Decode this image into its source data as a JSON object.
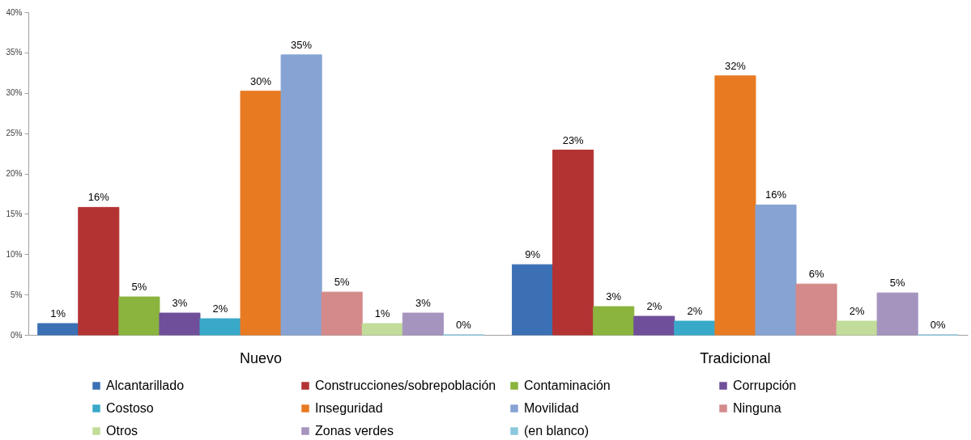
{
  "chart_data": {
    "type": "bar",
    "categories": [
      "Nuevo",
      "Tradicional"
    ],
    "series": [
      {
        "name": "Alcantarillado",
        "color": "#3c70b5",
        "values": [
          1.4,
          8.7
        ],
        "value_labels": [
          "1%",
          "9%"
        ]
      },
      {
        "name": "Construcciones/sobrepoblación",
        "color": "#b33333",
        "values": [
          15.8,
          22.9
        ],
        "value_labels": [
          "16%",
          "23%"
        ]
      },
      {
        "name": "Contaminación",
        "color": "#8ab43e",
        "values": [
          4.7,
          3.5
        ],
        "value_labels": [
          "5%",
          "3%"
        ]
      },
      {
        "name": "Corrupción",
        "color": "#6f4f9a",
        "values": [
          2.7,
          2.3
        ],
        "value_labels": [
          "3%",
          "2%"
        ]
      },
      {
        "name": "Costoso",
        "color": "#39a9c9",
        "values": [
          2.0,
          1.7
        ],
        "value_labels": [
          "2%",
          "2%"
        ]
      },
      {
        "name": "Inseguridad",
        "color": "#e87a22",
        "values": [
          30.2,
          32.1
        ],
        "value_labels": [
          "30%",
          "32%"
        ]
      },
      {
        "name": "Movilidad",
        "color": "#86a3d3",
        "values": [
          34.7,
          16.1
        ],
        "value_labels": [
          "35%",
          "16%"
        ]
      },
      {
        "name": "Ninguna",
        "color": "#d48a8a",
        "values": [
          5.3,
          6.3
        ],
        "value_labels": [
          "5%",
          "6%"
        ]
      },
      {
        "name": "Otros",
        "color": "#c2dc9a",
        "values": [
          1.4,
          1.7
        ],
        "value_labels": [
          "1%",
          "2%"
        ]
      },
      {
        "name": "Zonas verdes",
        "color": "#a494be",
        "values": [
          2.7,
          5.2
        ],
        "value_labels": [
          "3%",
          "5%"
        ]
      },
      {
        "name": "(en blanco)",
        "color": "#8cc8dc",
        "values": [
          0,
          0
        ],
        "value_labels": [
          "0%",
          "0%"
        ]
      }
    ],
    "ylim": [
      0,
      40
    ],
    "yticks": [
      {
        "value": 0,
        "label": "0%"
      },
      {
        "value": 5,
        "label": "5%"
      },
      {
        "value": 10,
        "label": "10%"
      },
      {
        "value": 15,
        "label": "15%"
      },
      {
        "value": 20,
        "label": "20%"
      },
      {
        "value": 25,
        "label": "25%"
      },
      {
        "value": 30,
        "label": "30%"
      },
      {
        "value": 35,
        "label": "35%"
      },
      {
        "value": 40,
        "label": "40%"
      }
    ],
    "legend": "bottom"
  }
}
